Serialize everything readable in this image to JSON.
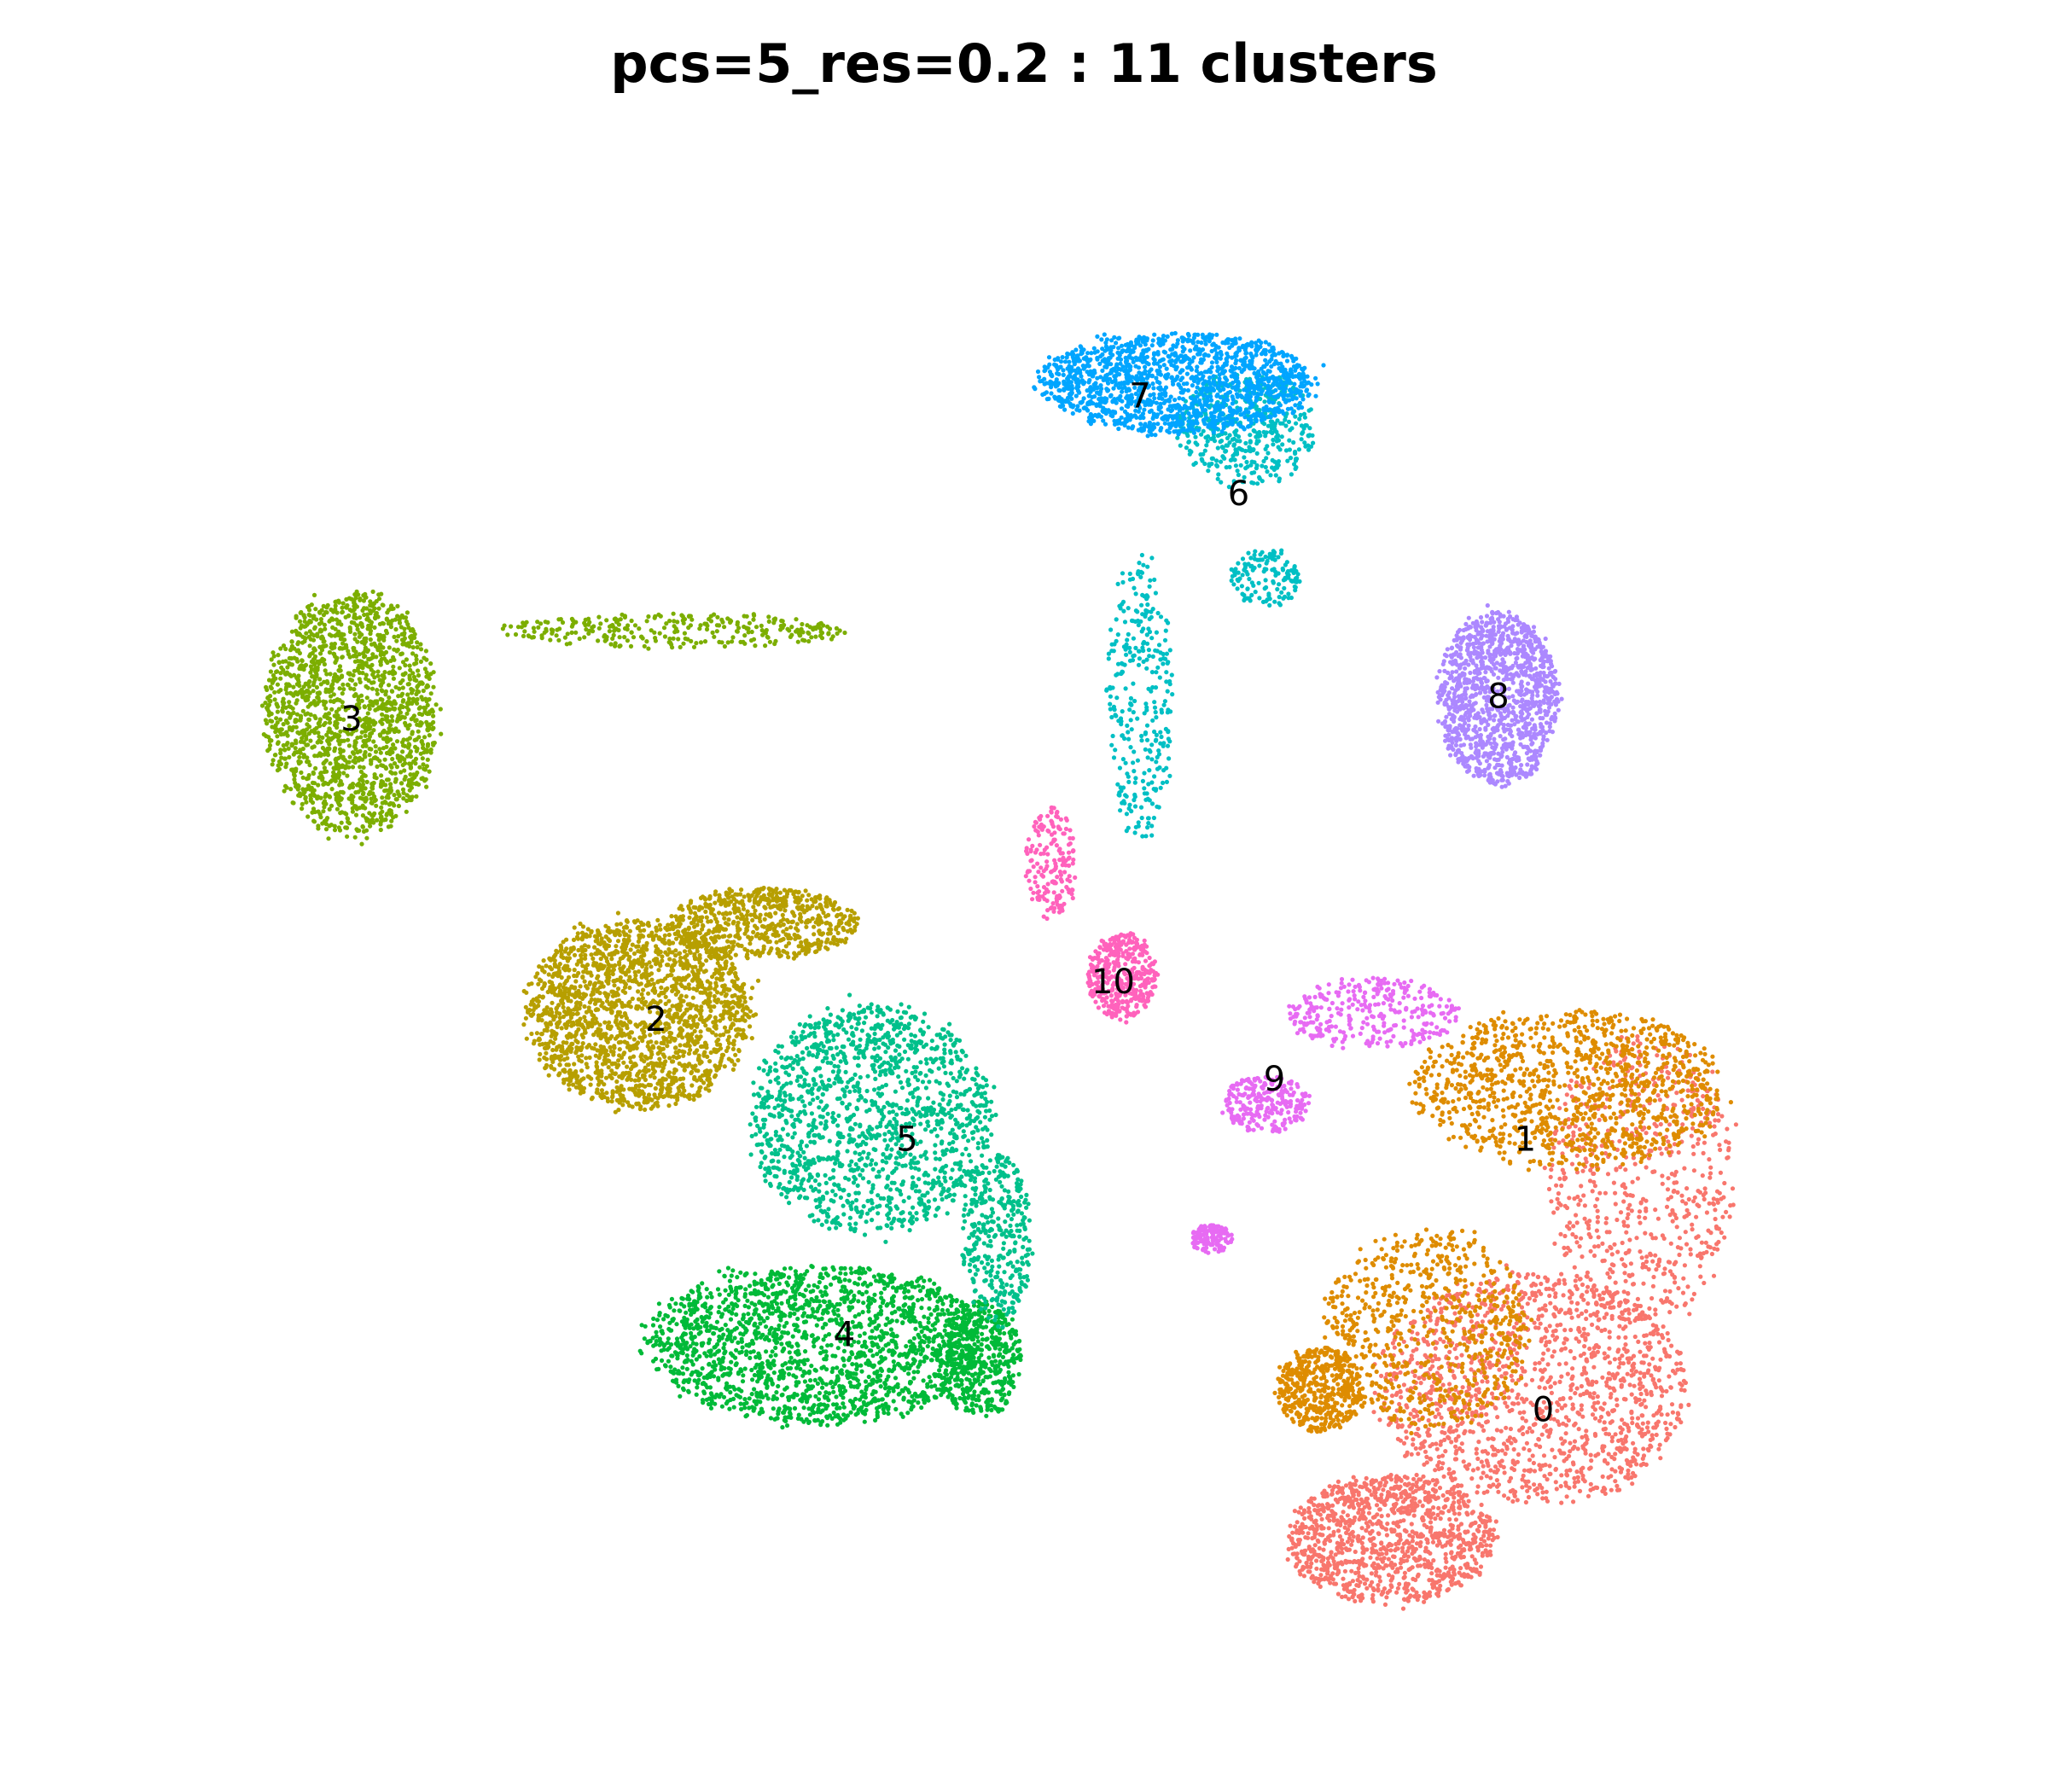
{
  "title": "pcs=5_res=0.2 : 11 clusters",
  "chart_data": {
    "type": "scatter",
    "title": "pcs=5_res=0.2 : 11 clusters",
    "xlabel": "",
    "ylabel": "",
    "axes_visible": false,
    "grid": false,
    "legend": "none",
    "xlim": [
      0,
      100
    ],
    "ylim": [
      0,
      100
    ],
    "clusters": [
      {
        "label": "0",
        "color": "#F8766D",
        "center": [
          78.5,
          18.5
        ],
        "density": 3200,
        "blobs": [
          {
            "c": [
              84,
              34
            ],
            "r": [
              5.5,
              10
            ],
            "w": 0.2
          },
          {
            "c": [
              78,
              20
            ],
            "r": [
              9,
              8
            ],
            "w": 0.45
          },
          {
            "c": [
              70,
              10
            ],
            "r": [
              6,
              4.5
            ],
            "w": 0.35
          }
        ]
      },
      {
        "label": "1",
        "color": "#DE8C00",
        "center": [
          77.5,
          36.5
        ],
        "density": 2300,
        "blobs": [
          {
            "c": [
              80,
              40
            ],
            "r": [
              9,
              5.5
            ],
            "w": 0.5
          },
          {
            "c": [
              72,
              24
            ],
            "r": [
              6,
              7
            ],
            "w": 0.3
          },
          {
            "c": [
              66,
              20
            ],
            "r": [
              2.5,
              3
            ],
            "w": 0.2
          }
        ]
      },
      {
        "label": "2",
        "color": "#B79F00",
        "center": [
          29,
          44.5
        ],
        "density": 2600,
        "blobs": [
          {
            "c": [
              28,
              45
            ],
            "r": [
              6.5,
              6.5
            ],
            "w": 0.75
          },
          {
            "c": [
              35,
              51
            ],
            "r": [
              5.5,
              2.5
            ],
            "w": 0.25
          }
        ]
      },
      {
        "label": "3",
        "color": "#7CAE00",
        "center": [
          12,
          64.5
        ],
        "density": 2000,
        "blobs": [
          {
            "c": [
              12,
              65
            ],
            "r": [
              5,
              8.5
            ],
            "w": 0.85
          },
          {
            "c": [
              30,
              70.5
            ],
            "r": [
              10,
              1.2
            ],
            "w": 0.15
          }
        ]
      },
      {
        "label": "4",
        "color": "#00BA38",
        "center": [
          39.5,
          23.5
        ],
        "density": 2300,
        "blobs": [
          {
            "c": [
              38,
              23
            ],
            "r": [
              10,
              5.5
            ],
            "w": 0.8
          },
          {
            "c": [
              47,
              22
            ],
            "r": [
              2.5,
              4
            ],
            "w": 0.2
          }
        ]
      },
      {
        "label": "5",
        "color": "#00C08B",
        "center": [
          43,
          36.5
        ],
        "density": 1800,
        "blobs": [
          {
            "c": [
              41,
              38
            ],
            "r": [
              7,
              8
            ],
            "w": 0.8
          },
          {
            "c": [
              48,
              30
            ],
            "r": [
              2,
              6
            ],
            "w": 0.2
          }
        ]
      },
      {
        "label": "6",
        "color": "#00BFC4",
        "center": [
          61.5,
          79.5
        ],
        "density": 900,
        "blobs": [
          {
            "c": [
              62,
              84
            ],
            "r": [
              4,
              4
            ],
            "w": 0.5
          },
          {
            "c": [
              56,
              66
            ],
            "r": [
              2,
              10
            ],
            "w": 0.35
          },
          {
            "c": [
              63,
              74
            ],
            "r": [
              2,
              2
            ],
            "w": 0.15
          }
        ]
      },
      {
        "label": "7",
        "color": "#00A5FF",
        "center": [
          56,
          86
        ],
        "density": 1500,
        "blobs": [
          {
            "c": [
              58,
              87
            ],
            "r": [
              8,
              3.5
            ],
            "w": 1.0
          }
        ]
      },
      {
        "label": "8",
        "color": "#AC88FF",
        "center": [
          76,
          66
        ],
        "density": 1200,
        "blobs": [
          {
            "c": [
              76,
              66
            ],
            "r": [
              3.5,
              6
            ],
            "w": 1.0
          }
        ]
      },
      {
        "label": "9",
        "color": "#E76BF3",
        "center": [
          63.5,
          40.5
        ],
        "density": 700,
        "blobs": [
          {
            "c": [
              63,
              39
            ],
            "r": [
              2.5,
              2
            ],
            "w": 0.35
          },
          {
            "c": [
              69,
              45
            ],
            "r": [
              5,
              2.5
            ],
            "w": 0.45
          },
          {
            "c": [
              60,
              30
            ],
            "r": [
              1.2,
              1
            ],
            "w": 0.2
          }
        ]
      },
      {
        "label": "10",
        "color": "#FF62BC",
        "center": [
          54.5,
          47
        ],
        "density": 600,
        "blobs": [
          {
            "c": [
              55,
              47.5
            ],
            "r": [
              2,
              3
            ],
            "w": 0.7
          },
          {
            "c": [
              51,
              55
            ],
            "r": [
              1.5,
              4
            ],
            "w": 0.3
          }
        ]
      }
    ]
  }
}
